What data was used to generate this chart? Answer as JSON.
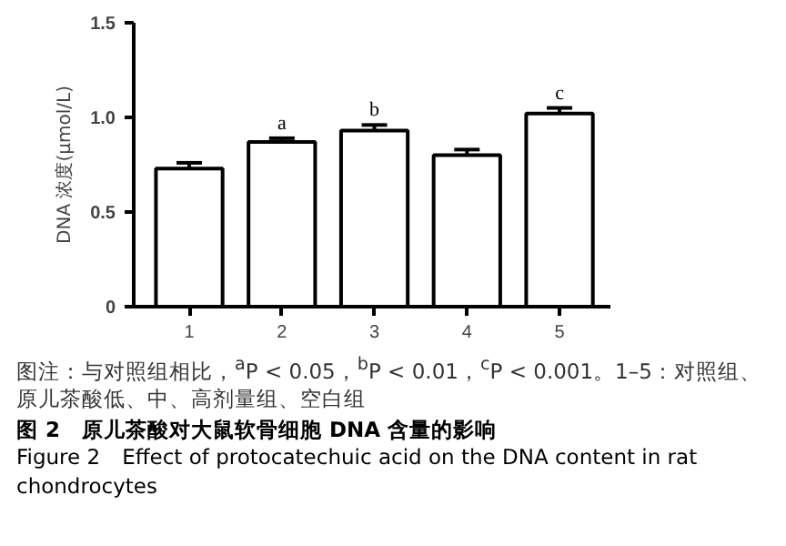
{
  "chart_data": {
    "type": "bar",
    "title": "图 2　原儿茶酸对大鼠软骨细胞 DNA 含量的影响",
    "subtitle": "Figure 2　Effect of protocatechuic acid on the DNA content in rat chondrocytes",
    "ylabel": "DNA 浓度(μmol/L)",
    "categories": [
      "1",
      "2",
      "3",
      "4",
      "5"
    ],
    "values": [
      0.73,
      0.87,
      0.93,
      0.8,
      1.02
    ],
    "errors": [
      0.03,
      0.02,
      0.03,
      0.03,
      0.03
    ],
    "color": "#ffffff",
    "ylim": [
      0,
      1.5
    ],
    "yticks": [
      0,
      0.5,
      {
        "value": 1,
        "label": "1.0"
      },
      1.5
    ],
    "grid": false,
    "annotations": [
      {
        "text": "a",
        "x": "2",
        "y": 0.89
      },
      {
        "text": "b",
        "x": "3",
        "y": 0.96
      },
      {
        "text": "c",
        "x": "5",
        "y": 1.05
      },
      "图注：与对照组相比，$^{a}$P < 0.05，$^{b}$P < 0.01，$^{c}$P < 0.001。1–5：对照组、原儿茶酸低、中、高剂量组、空白组"
    ]
  }
}
